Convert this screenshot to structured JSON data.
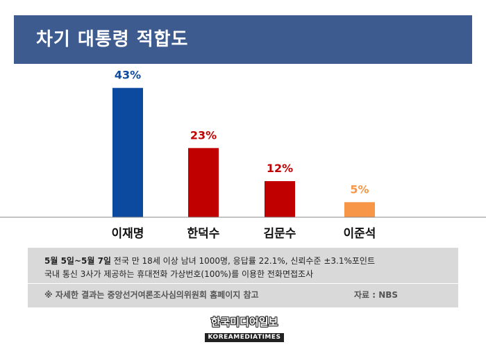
{
  "header": {
    "title": "차기 대통령 적합도"
  },
  "chart_data": {
    "type": "bar",
    "title": "차기 대통령 적합도",
    "categories": [
      "이재명",
      "한덕수",
      "김문수",
      "이준석"
    ],
    "values": [
      43,
      23,
      12,
      5
    ],
    "value_labels": [
      "43%",
      "23%",
      "12%",
      "5%"
    ],
    "colors": [
      "#0b4a9e",
      "#c00000",
      "#c00000",
      "#f79646"
    ],
    "ylim": [
      0,
      45
    ],
    "xlabel": "",
    "ylabel": "",
    "grid": false
  },
  "info": {
    "date_range": "5월 5일~5월 7일",
    "method_line1": " 전국 만 18세 이상 남녀 1000명, 응답률 22.1%, 신뢰수준 ±3.1%포인트",
    "method_line2": "국내 통신 3사가 제공하는 휴대전화 가상번호(100%)를 이용한 전화면접조사",
    "note": "※ 자세한 결과는 중앙선거여론조사심의위원회 홈페이지 참고",
    "source": "자료 : NBS"
  },
  "logo": {
    "korean": "한국미디어일보",
    "english": "KOREAMEDIATIMES"
  }
}
